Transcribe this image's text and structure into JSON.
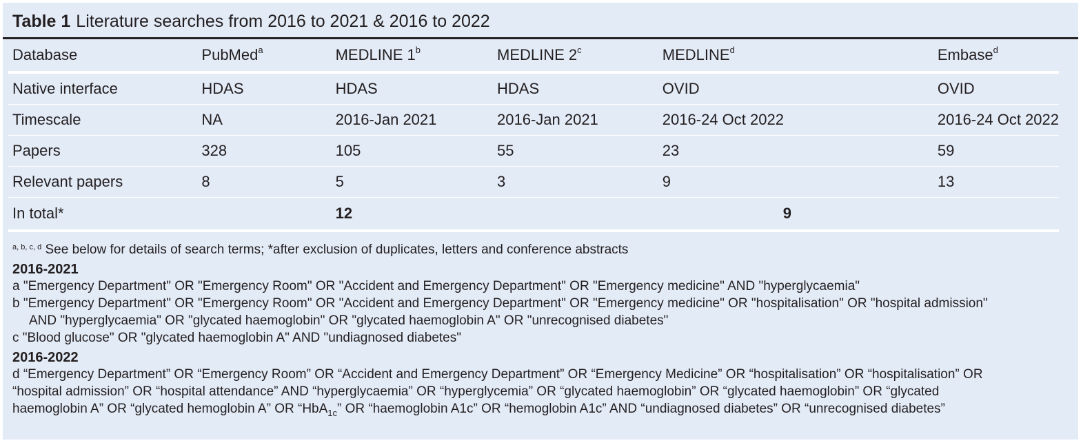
{
  "title": {
    "label": "Table 1",
    "text": "Literature searches from 2016 to 2021 & 2016 to 2022"
  },
  "table": {
    "header": {
      "col0": "Database",
      "col1": "PubMed",
      "col1_sup": "a",
      "col2": "MEDLINE 1",
      "col2_sup": "b",
      "col3": "MEDLINE 2",
      "col3_sup": "c",
      "col4": "MEDLINE",
      "col4_sup": "d",
      "col5": "Embase",
      "col5_sup": "d"
    },
    "rows": [
      {
        "label": "Native interface",
        "v1": "HDAS",
        "v2": "HDAS",
        "v3": "HDAS",
        "v4": "OVID",
        "v5": "OVID"
      },
      {
        "label": "Timescale",
        "v1": "NA",
        "v2": "2016-Jan 2021",
        "v3": "2016-Jan 2021",
        "v4": "2016-24 Oct 2022",
        "v5": "2016-24 Oct 2022"
      },
      {
        "label": "Papers",
        "v1": "328",
        "v2": "105",
        "v3": "55",
        "v4": "23",
        "v5": "59"
      },
      {
        "label": "Relevant papers",
        "v1": "8",
        "v2": "5",
        "v3": "3",
        "v4": "9",
        "v5": "13"
      }
    ],
    "total": {
      "label": "In total*",
      "group1": "12",
      "group2": "9"
    }
  },
  "notes": {
    "footnote_marks": "a, b, c, d",
    "footnote_text": " See below for details of search terms; *after exclusion of duplicates, letters and conference abstracts",
    "section1": "2016-2021",
    "a": "a \"Emergency Department\" OR \"Emergency Room\" OR \"Accident and Emergency Department\" OR  \"Emergency medicine\" AND \"hyperglycaemia\"",
    "b1": "b \"Emergency Department\" OR \"Emergency Room\" OR \"Accident and Emergency Department\" OR \"Emergency medicine\" OR \"hospitalisation\" OR \"hospital admission\"",
    "b2": "AND \"hyperglycaemia\" OR \"glycated haemoglobin\" OR \"glycated haemoglobin A\" OR \"unrecognised diabetes\"",
    "c": "c \"Blood glucose\" OR \"glycated haemoglobin A\" AND \"undiagnosed diabetes\"",
    "section2": "2016-2022",
    "d1": "d “Emergency Department” OR  “Emergency Room” OR “Accident and Emergency Department” OR “Emergency Medicine” OR “hospitalisation” OR “hospitalisation” OR",
    "d2": "“hospital admission” OR “hospital attendance” AND “hyperglycaemia” OR “hyperglycemia” OR “glycated haemoglobin” OR “glycated haemoglobin” OR “glycated",
    "d3_pre": "haemoglobin A” OR “glycated hemoglobin A” OR “HbA",
    "d3_sub": "1c",
    "d3_post": "” OR “haemoglobin A1c” OR “hemoglobin A1c” AND “undiagnosed diabetes” OR “unrecognised diabetes”"
  }
}
